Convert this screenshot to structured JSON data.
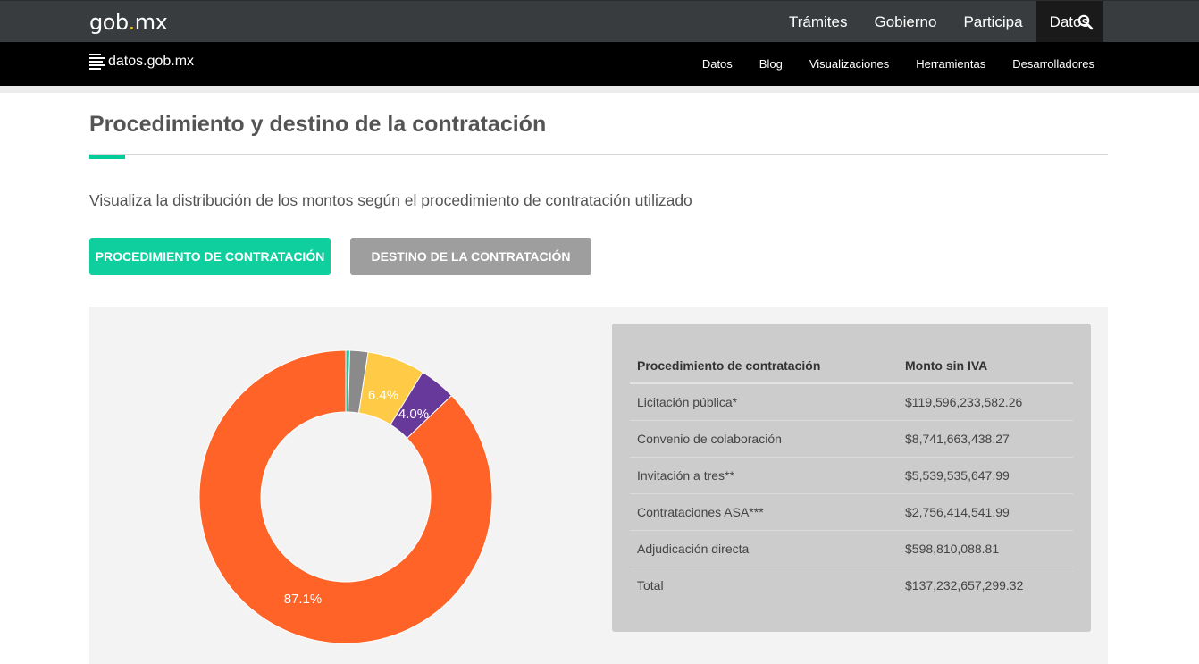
{
  "header": {
    "brand": "gob",
    "brand_dot": ".",
    "brand_tld": "mx",
    "nav": [
      "Trámites",
      "Gobierno",
      "Participa",
      "Datos"
    ],
    "active": "Datos"
  },
  "subheader": {
    "logo": "datos.gob.mx",
    "nav": [
      "Datos",
      "Blog",
      "Visualizaciones",
      "Herramientas",
      "Desarrolladores"
    ]
  },
  "page": {
    "title": "Procedimiento y destino de la contratación",
    "lead": "Visualiza la distribución de los montos según el procedimiento de contratación utilizado",
    "button_active": "PROCEDIMIENTO DE CONTRATACIÓN",
    "button_inactive": "DESTINO DE LA CONTRATACIÓN"
  },
  "table": {
    "headers": [
      "Procedimiento de contratación",
      "Monto sin IVA"
    ],
    "rows": [
      [
        "Licitación pública*",
        "$119,596,233,582.26"
      ],
      [
        "Convenio de colaboración",
        "$8,741,663,438.27"
      ],
      [
        "Invitación a tres**",
        "$5,539,535,647.99"
      ],
      [
        "Contrataciones ASA***",
        "$2,756,414,541.99"
      ],
      [
        "Adjudicación directa",
        "$598,810,088.81"
      ],
      [
        "Total",
        "$137,232,657,299.32"
      ]
    ]
  },
  "chart_data": {
    "type": "pie",
    "variant": "donut",
    "categories": [
      "Licitación pública*",
      "Convenio de colaboración",
      "Invitación a tres**",
      "Contrataciones ASA***",
      "Adjudicación directa"
    ],
    "values": [
      119596233582.26,
      8741663438.27,
      5539535647.99,
      2756414541.99,
      598810088.81
    ],
    "percent_labels": [
      "87.1%",
      "6.4%",
      "4.0%",
      "",
      ""
    ],
    "colors": [
      "#ff6327",
      "#ffcb47",
      "#66399a",
      "#8a8a8a",
      "#1fc4a3"
    ]
  },
  "icons": {
    "search": "search-icon",
    "logo": "lines-logo-icon"
  }
}
